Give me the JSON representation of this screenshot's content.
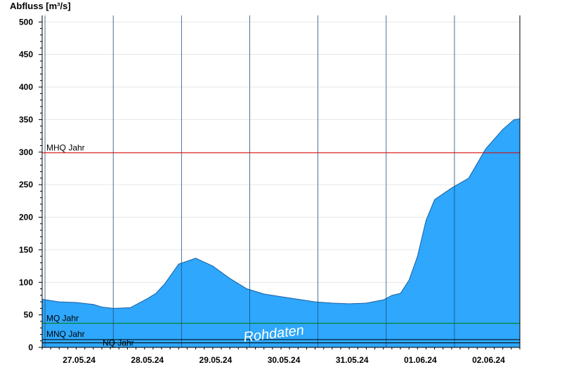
{
  "chart_data": {
    "type": "area",
    "title": "",
    "ylabel": "Abfluss [m³/s]",
    "xlabel": "",
    "ylim": [
      0,
      510
    ],
    "yticks": [
      0,
      50,
      100,
      150,
      200,
      250,
      300,
      350,
      400,
      450,
      500
    ],
    "x_dates": [
      "27.05.24",
      "28.05.24",
      "29.05.24",
      "30.05.24",
      "31.05.24",
      "01.06.24",
      "02.06.24"
    ],
    "x_start": "2024-05-26T23:00",
    "x_end": "2024-06-02T23:00",
    "grid": true,
    "series": [
      {
        "color": "#2ea7fc",
        "x": [
          "2024-05-26T23:00",
          "2024-05-27T05:00",
          "2024-05-27T11:00",
          "2024-05-27T17:00",
          "2024-05-27T20:00",
          "2024-05-28T00:00",
          "2024-05-28T06:00",
          "2024-05-28T12:00",
          "2024-05-28T15:00",
          "2024-05-28T18:00",
          "2024-05-28T23:00",
          "2024-05-29T05:00",
          "2024-05-29T11:00",
          "2024-05-29T17:00",
          "2024-05-29T23:00",
          "2024-05-30T05:00",
          "2024-05-30T11:00",
          "2024-05-30T17:00",
          "2024-05-30T23:00",
          "2024-05-31T05:00",
          "2024-05-31T11:00",
          "2024-05-31T17:00",
          "2024-05-31T23:00",
          "2024-06-01T02:00",
          "2024-06-01T05:00",
          "2024-06-01T08:00",
          "2024-06-01T11:00",
          "2024-06-01T14:00",
          "2024-06-01T17:00",
          "2024-06-01T23:00",
          "2024-06-02T05:00",
          "2024-06-02T11:00",
          "2024-06-02T17:00",
          "2024-06-02T21:00",
          "2024-06-02T23:00"
        ],
        "values": [
          74,
          70,
          69,
          66,
          62,
          60,
          61,
          75,
          83,
          97,
          128,
          137,
          125,
          106,
          90,
          82,
          78,
          74,
          70,
          68,
          67,
          68,
          73,
          80,
          83,
          103,
          140,
          195,
          227,
          245,
          260,
          305,
          335,
          350,
          351
        ]
      }
    ],
    "reference_lines": [
      {
        "label": "MHQ Jahr",
        "value": 299,
        "color": "#e00000"
      },
      {
        "label": "MQ Jahr",
        "value": 37,
        "color": "#007a00"
      },
      {
        "label": "MNQ Jahr",
        "value": 12,
        "color": "#000000"
      },
      {
        "label": "NQ Jahr",
        "value": 7,
        "color": "#000000"
      }
    ],
    "annotation": "Rohdaten"
  }
}
